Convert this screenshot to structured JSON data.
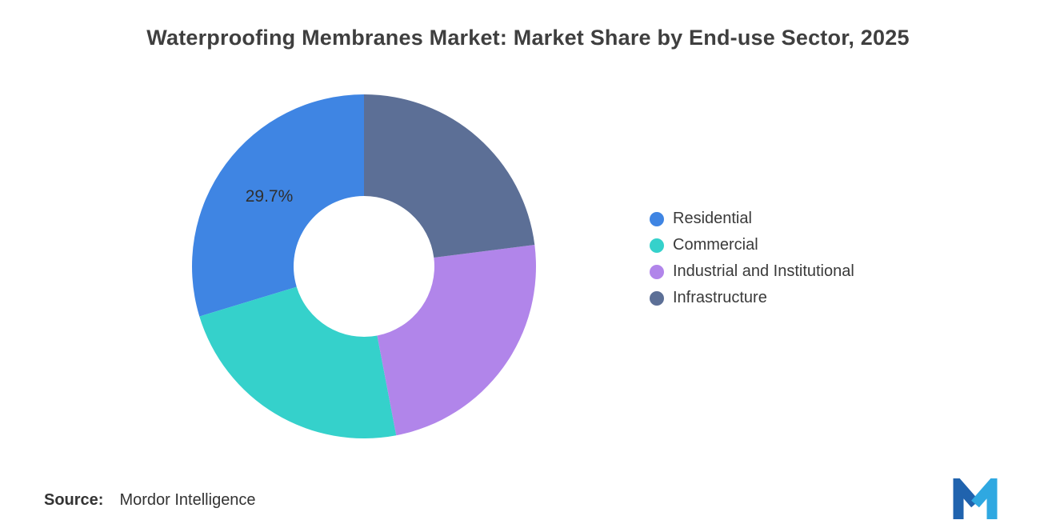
{
  "title": "Waterproofing Membranes Market: Market Share by End-use Sector, 2025",
  "chart_data": {
    "type": "pie",
    "donut": true,
    "title": "Waterproofing Membranes Market: Market Share by End-use Sector, 2025",
    "categories": [
      "Residential",
      "Commercial",
      "Industrial and Institutional",
      "Infrastructure"
    ],
    "values": [
      29.7,
      23.3,
      24.0,
      23.0
    ],
    "colors": [
      "#3F85E3",
      "#35D1CB",
      "#B185EA",
      "#5C6F96"
    ],
    "data_labels": [
      "29.7%",
      "",
      "",
      ""
    ],
    "start_angle_deg": -90,
    "direction": "counterclockwise",
    "legend_position": "right",
    "inner_radius_ratio": 0.41
  },
  "legend": {
    "items": [
      {
        "label": "Residential",
        "color": "#3F85E3"
      },
      {
        "label": "Commercial",
        "color": "#35D1CB"
      },
      {
        "label": "Industrial and Institutional",
        "color": "#B185EA"
      },
      {
        "label": "Infrastructure",
        "color": "#5C6F96"
      }
    ]
  },
  "source": {
    "label": "Source:",
    "value": "Mordor Intelligence"
  },
  "logo": {
    "icon": "mordor-intelligence-logo",
    "dark_color": "#2063AE",
    "light_color": "#2FA8E1"
  }
}
